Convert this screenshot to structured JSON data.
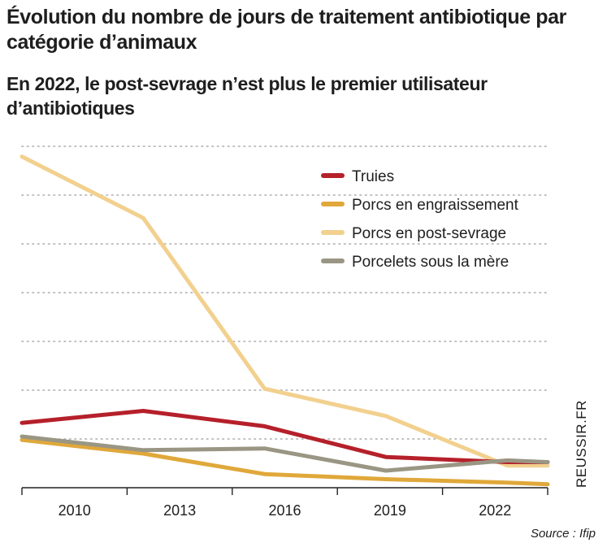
{
  "chart_data": {
    "type": "line",
    "title": "Évolution du nombre de jours de traitement antibiotique par catégorie d’animaux",
    "subtitle": "En 2022, le post-sevrage n’est plus le premier utilisateur d’antibiotiques",
    "xlabel": "",
    "ylabel": "",
    "categories": [
      "2010",
      "2013",
      "2016",
      "2019",
      "2022"
    ],
    "x": [
      2009,
      2012,
      2015,
      2018,
      2021,
      2022
    ],
    "ylim": [
      0,
      100
    ],
    "grid": true,
    "legend_position": "top-right",
    "series": [
      {
        "name": "Truies",
        "color": "#b5202a",
        "values": [
          19,
          22.5,
          18,
          9,
          7.5,
          7.5
        ]
      },
      {
        "name": "Porcs en engraissement",
        "color": "#e0a83a",
        "values": [
          14,
          10,
          4,
          2.5,
          1.5,
          1
        ]
      },
      {
        "name": "Porcs en post-sevrage",
        "color": "#f2d08e",
        "values": [
          97,
          79,
          29,
          21,
          6.5,
          6.5
        ]
      },
      {
        "name": "Porcelets sous la mère",
        "color": "#9a9684",
        "values": [
          15,
          11,
          11.5,
          5,
          8,
          7.5
        ]
      }
    ]
  },
  "brand": "REUSSIR.FR",
  "source": "Source : Ifip"
}
